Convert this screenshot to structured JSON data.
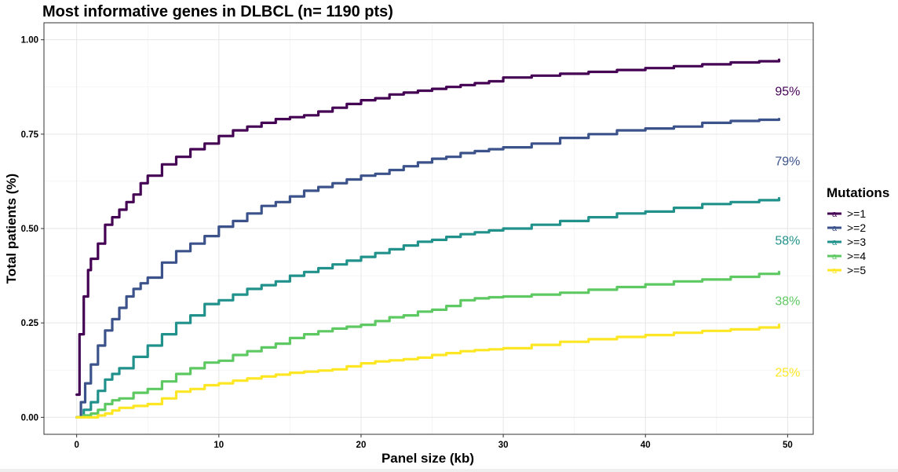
{
  "chart_data": {
    "type": "line",
    "title": "Most informative genes in DLBCL (n= 1190 pts)",
    "xlabel": "Panel size (kb)",
    "ylabel": "Total patients (%)",
    "xlim": [
      -2.3,
      51.8
    ],
    "ylim": [
      -0.045,
      1.045
    ],
    "xticks": [
      0,
      10,
      20,
      30,
      40,
      50
    ],
    "xtick_labels": [
      "0",
      "10",
      "20",
      "30",
      "40",
      "50"
    ],
    "yticks": [
      0,
      0.25,
      0.5,
      0.75,
      1.0
    ],
    "ytick_labels": [
      "0.00",
      "0.25",
      "0.50",
      "0.75",
      "1.00"
    ],
    "grid": true,
    "legend": {
      "title": "Mutations",
      "position": "right"
    },
    "series": [
      {
        "name": ">=1",
        "color": "#440154",
        "end_label": "95%",
        "end_label_y": 0.865,
        "x": [
          0,
          0.2,
          0.5,
          0.8,
          1,
          1.5,
          2,
          2.5,
          3,
          3.5,
          4,
          4.5,
          5,
          6,
          7,
          8,
          9,
          10,
          11,
          12,
          13,
          14,
          15,
          16,
          17,
          18,
          19,
          20,
          21,
          22,
          23,
          24,
          25,
          26,
          27,
          28,
          29,
          30,
          32,
          34,
          36,
          38,
          40,
          42,
          44,
          46,
          48,
          49.4
        ],
        "y": [
          0.06,
          0.22,
          0.32,
          0.39,
          0.42,
          0.46,
          0.51,
          0.53,
          0.55,
          0.57,
          0.59,
          0.62,
          0.64,
          0.67,
          0.69,
          0.71,
          0.725,
          0.745,
          0.76,
          0.77,
          0.78,
          0.79,
          0.795,
          0.8,
          0.81,
          0.82,
          0.83,
          0.84,
          0.845,
          0.855,
          0.86,
          0.865,
          0.87,
          0.875,
          0.88,
          0.885,
          0.89,
          0.9,
          0.905,
          0.91,
          0.915,
          0.92,
          0.925,
          0.93,
          0.935,
          0.94,
          0.943,
          0.947
        ]
      },
      {
        "name": ">=2",
        "color": "#3b528b",
        "end_label": "79%",
        "end_label_y": 0.68,
        "x": [
          0,
          0.3,
          0.6,
          1,
          1.5,
          2,
          2.5,
          3,
          3.5,
          4,
          4.5,
          5,
          6,
          7,
          8,
          9,
          10,
          11,
          12,
          13,
          14,
          15,
          16,
          17,
          18,
          19,
          20,
          21,
          22,
          23,
          24,
          25,
          26,
          27,
          28,
          29,
          30,
          32,
          34,
          36,
          38,
          40,
          42,
          44,
          46,
          48,
          49.4
        ],
        "y": [
          0,
          0.04,
          0.09,
          0.14,
          0.19,
          0.23,
          0.26,
          0.29,
          0.32,
          0.34,
          0.355,
          0.37,
          0.41,
          0.44,
          0.46,
          0.48,
          0.505,
          0.52,
          0.54,
          0.56,
          0.57,
          0.585,
          0.6,
          0.61,
          0.62,
          0.63,
          0.64,
          0.645,
          0.655,
          0.665,
          0.675,
          0.685,
          0.69,
          0.7,
          0.705,
          0.71,
          0.715,
          0.725,
          0.74,
          0.75,
          0.76,
          0.765,
          0.77,
          0.78,
          0.785,
          0.788,
          0.79
        ]
      },
      {
        "name": ">=3",
        "color": "#21918c",
        "end_label": "58%",
        "end_label_y": 0.47,
        "x": [
          0,
          0.5,
          1,
          1.5,
          2,
          2.5,
          3,
          4,
          5,
          6,
          7,
          8,
          9,
          10,
          11,
          12,
          13,
          14,
          15,
          16,
          17,
          18,
          19,
          20,
          21,
          22,
          23,
          24,
          25,
          26,
          27,
          28,
          29,
          30,
          32,
          34,
          36,
          38,
          40,
          42,
          44,
          46,
          48,
          49.4
        ],
        "y": [
          0,
          0.02,
          0.04,
          0.07,
          0.1,
          0.115,
          0.13,
          0.16,
          0.19,
          0.22,
          0.25,
          0.27,
          0.3,
          0.31,
          0.325,
          0.34,
          0.35,
          0.36,
          0.375,
          0.385,
          0.395,
          0.405,
          0.415,
          0.425,
          0.435,
          0.445,
          0.455,
          0.465,
          0.47,
          0.478,
          0.485,
          0.49,
          0.495,
          0.5,
          0.51,
          0.52,
          0.53,
          0.54,
          0.545,
          0.555,
          0.565,
          0.57,
          0.575,
          0.58
        ]
      },
      {
        "name": ">=4",
        "color": "#5ec962",
        "end_label": "38%",
        "end_label_y": 0.31,
        "x": [
          0,
          0.5,
          1,
          1.5,
          2,
          2.5,
          3,
          4,
          5,
          6,
          7,
          8,
          9,
          10,
          11,
          12,
          13,
          14,
          15,
          16,
          17,
          18,
          19,
          20,
          21,
          22,
          23,
          24,
          25,
          26,
          27,
          28,
          29,
          30,
          32,
          34,
          36,
          38,
          40,
          42,
          44,
          46,
          48,
          49.4
        ],
        "y": [
          0,
          0.005,
          0.01,
          0.02,
          0.035,
          0.045,
          0.05,
          0.065,
          0.075,
          0.095,
          0.115,
          0.13,
          0.145,
          0.15,
          0.165,
          0.175,
          0.185,
          0.195,
          0.21,
          0.22,
          0.228,
          0.235,
          0.24,
          0.245,
          0.255,
          0.265,
          0.27,
          0.28,
          0.285,
          0.295,
          0.31,
          0.315,
          0.318,
          0.32,
          0.325,
          0.33,
          0.338,
          0.345,
          0.352,
          0.36,
          0.365,
          0.372,
          0.38,
          0.385
        ]
      },
      {
        "name": ">=5",
        "color": "#fde725",
        "end_label": "25%",
        "end_label_y": 0.12,
        "x": [
          0,
          1,
          1.5,
          2,
          2.5,
          3,
          4,
          5,
          6,
          7,
          8,
          9,
          10,
          11,
          12,
          13,
          14,
          15,
          16,
          17,
          18,
          19,
          20,
          21,
          22,
          23,
          24,
          25,
          26,
          27,
          28,
          29,
          30,
          32,
          34,
          36,
          38,
          40,
          42,
          44,
          46,
          48,
          49.4
        ],
        "y": [
          0,
          0,
          0.005,
          0.01,
          0.018,
          0.025,
          0.03,
          0.035,
          0.05,
          0.068,
          0.075,
          0.085,
          0.09,
          0.097,
          0.103,
          0.108,
          0.113,
          0.118,
          0.121,
          0.124,
          0.127,
          0.135,
          0.143,
          0.148,
          0.151,
          0.154,
          0.158,
          0.165,
          0.17,
          0.175,
          0.178,
          0.18,
          0.183,
          0.192,
          0.2,
          0.207,
          0.213,
          0.218,
          0.224,
          0.229,
          0.233,
          0.238,
          0.245
        ]
      }
    ]
  }
}
